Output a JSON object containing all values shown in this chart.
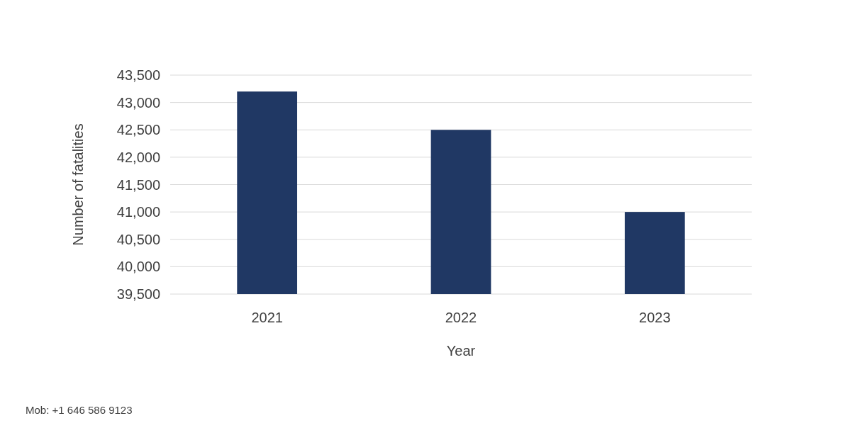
{
  "chart_data": {
    "type": "bar",
    "xlabel": "Year",
    "ylabel": "Number of fatalities",
    "categories": [
      "2021",
      "2022",
      "2023"
    ],
    "values": [
      43200,
      42500,
      41000
    ],
    "color": "#203864",
    "ylim": [
      39500,
      43500
    ],
    "yticks": [
      {
        "value": 39500,
        "label": "39,500"
      },
      {
        "value": 40000,
        "label": "40,000"
      },
      {
        "value": 40500,
        "label": "40,500"
      },
      {
        "value": 41000,
        "label": "41,000"
      },
      {
        "value": 41500,
        "label": "41,500"
      },
      {
        "value": 42000,
        "label": "42,000"
      },
      {
        "value": 42500,
        "label": "42,500"
      },
      {
        "value": 43000,
        "label": "43,000"
      },
      {
        "value": 43500,
        "label": "43,500"
      }
    ],
    "grid": "y",
    "annotations": [
      "Mob: +1 646 586 9123"
    ]
  }
}
